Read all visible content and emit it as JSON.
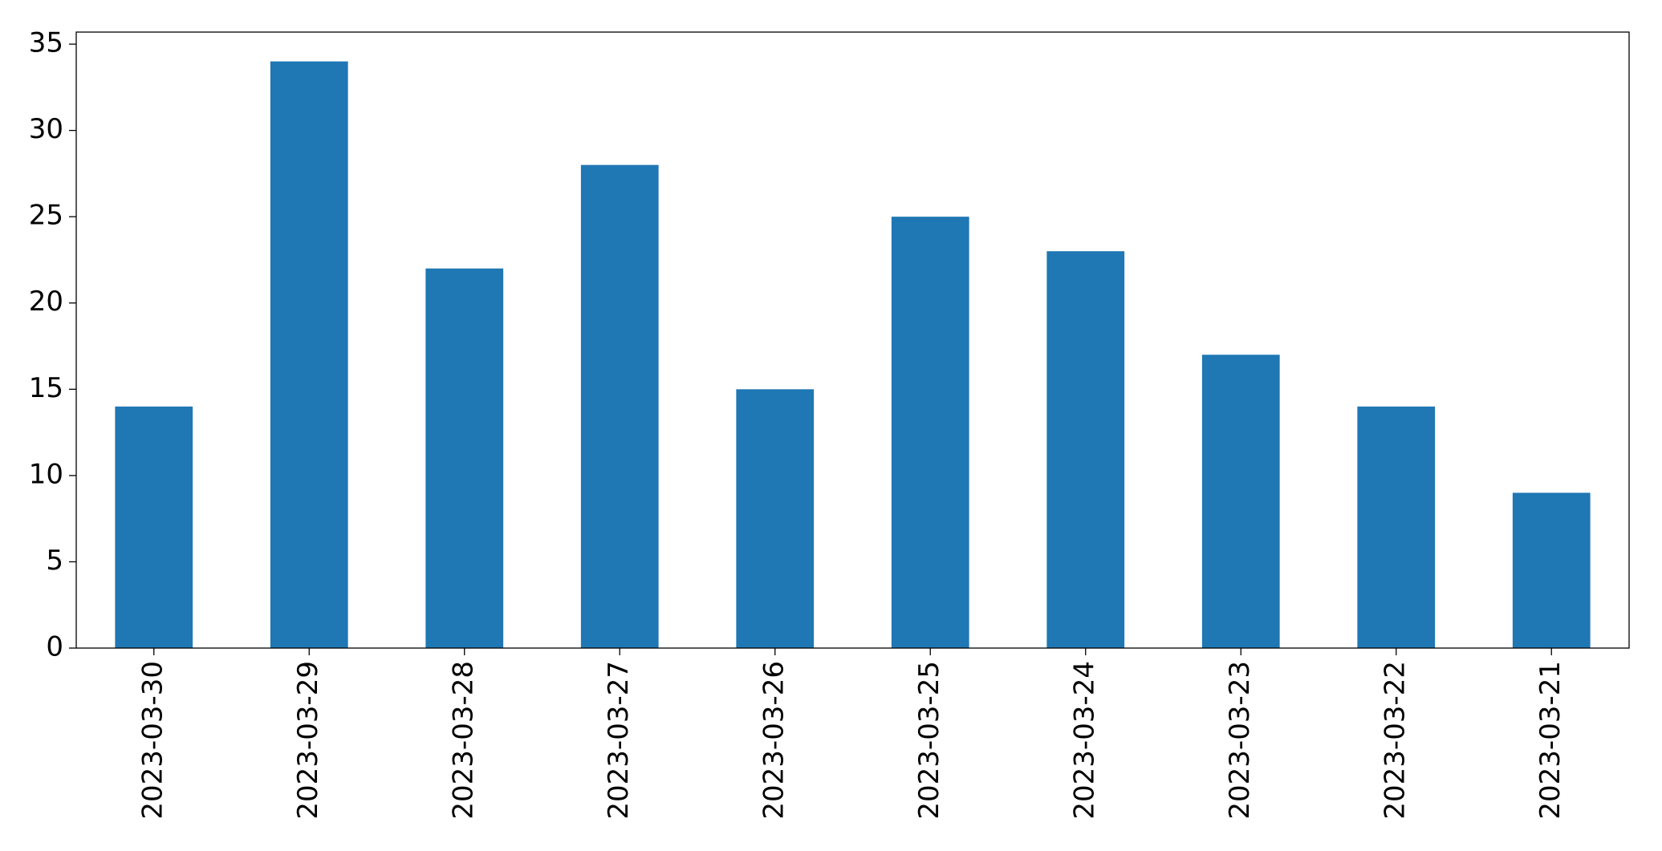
{
  "chart_data": {
    "type": "bar",
    "categories": [
      "2023-03-30",
      "2023-03-29",
      "2023-03-28",
      "2023-03-27",
      "2023-03-26",
      "2023-03-25",
      "2023-03-24",
      "2023-03-23",
      "2023-03-22",
      "2023-03-21"
    ],
    "values": [
      14,
      34,
      22,
      28,
      15,
      25,
      23,
      17,
      14,
      9
    ],
    "color": "#1f77b4",
    "ylim": [
      0,
      35.7
    ],
    "yticks": [
      0,
      5,
      10,
      15,
      20,
      25,
      30,
      35
    ],
    "grid": false
  }
}
